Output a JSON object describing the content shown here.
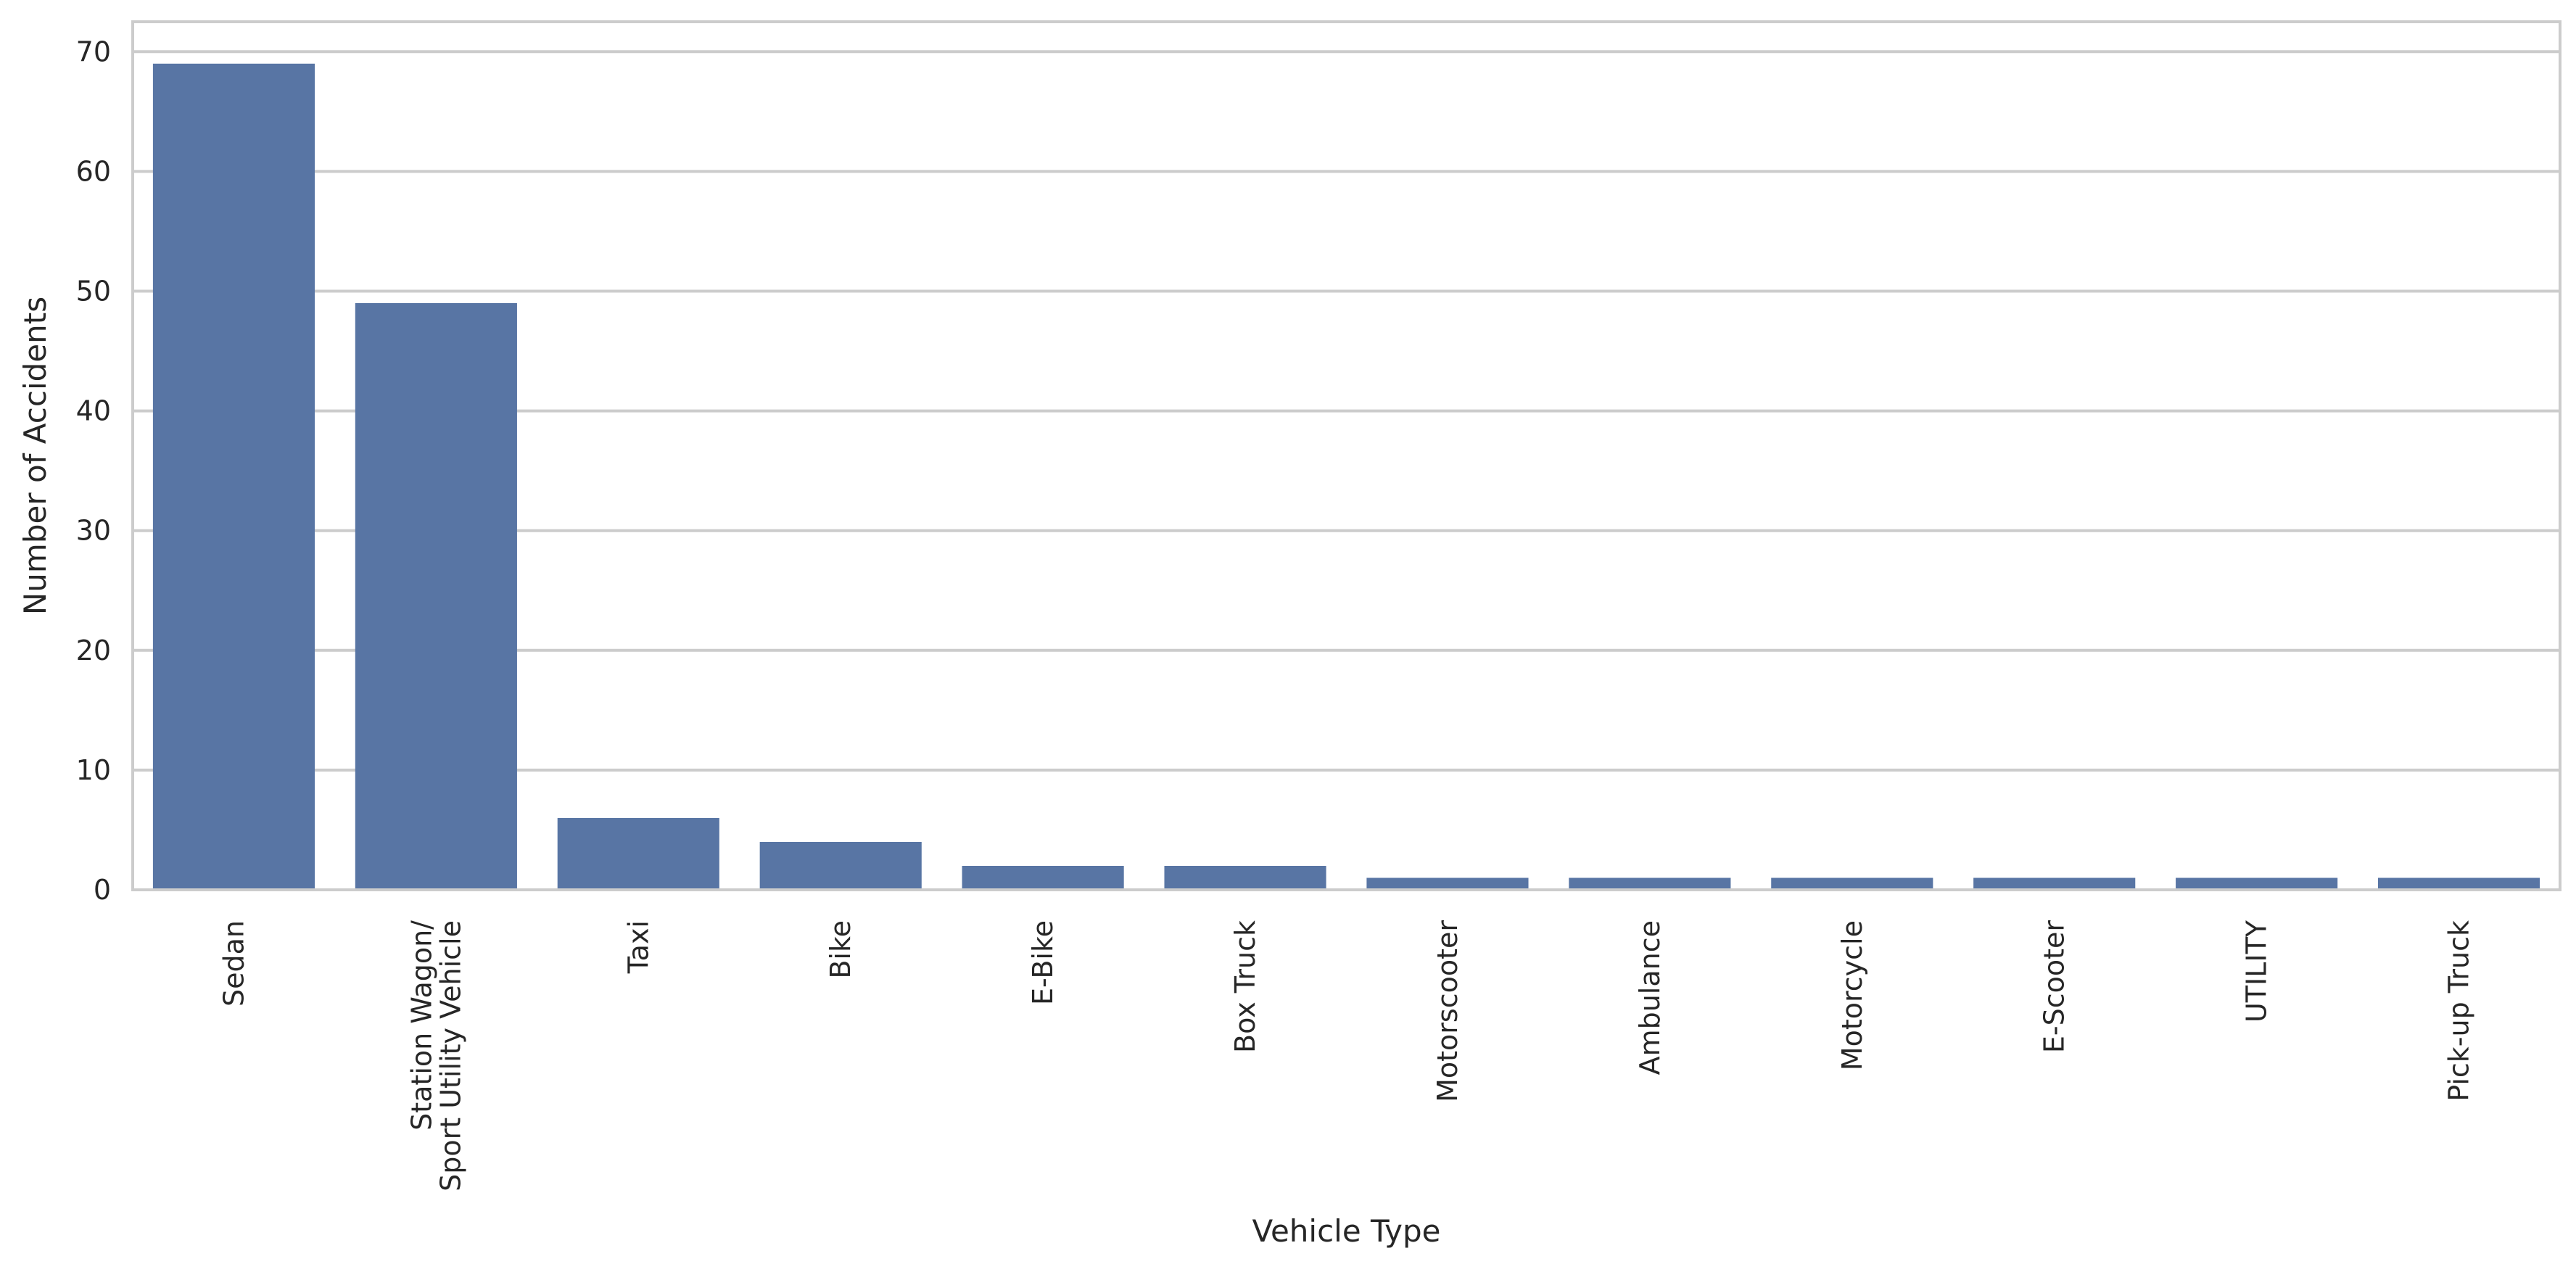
{
  "chart_data": {
    "type": "bar",
    "title": "",
    "xlabel": "Vehicle Type",
    "ylabel": "Number of Accidents",
    "categories": [
      [
        "Sedan"
      ],
      [
        "Station Wagon/",
        "Sport Utility Vehicle"
      ],
      [
        "Taxi"
      ],
      [
        "Bike"
      ],
      [
        "E-Bike"
      ],
      [
        "Box Truck"
      ],
      [
        "Motorscooter"
      ],
      [
        "Ambulance"
      ],
      [
        "Motorcycle"
      ],
      [
        "E-Scooter"
      ],
      [
        "UTILITY"
      ],
      [
        "Pick-up Truck"
      ]
    ],
    "values": [
      69,
      49,
      6,
      4,
      2,
      2,
      1,
      1,
      1,
      1,
      1,
      1
    ],
    "ylim": [
      0,
      72.5
    ],
    "yticks": [
      0,
      10,
      20,
      30,
      40,
      50,
      60,
      70
    ],
    "grid": "horizontal",
    "legend": "none",
    "colors": {
      "bar": "#5875a4",
      "grid": "#cccccc",
      "frame": "#cccccc",
      "text": "#262626"
    }
  }
}
